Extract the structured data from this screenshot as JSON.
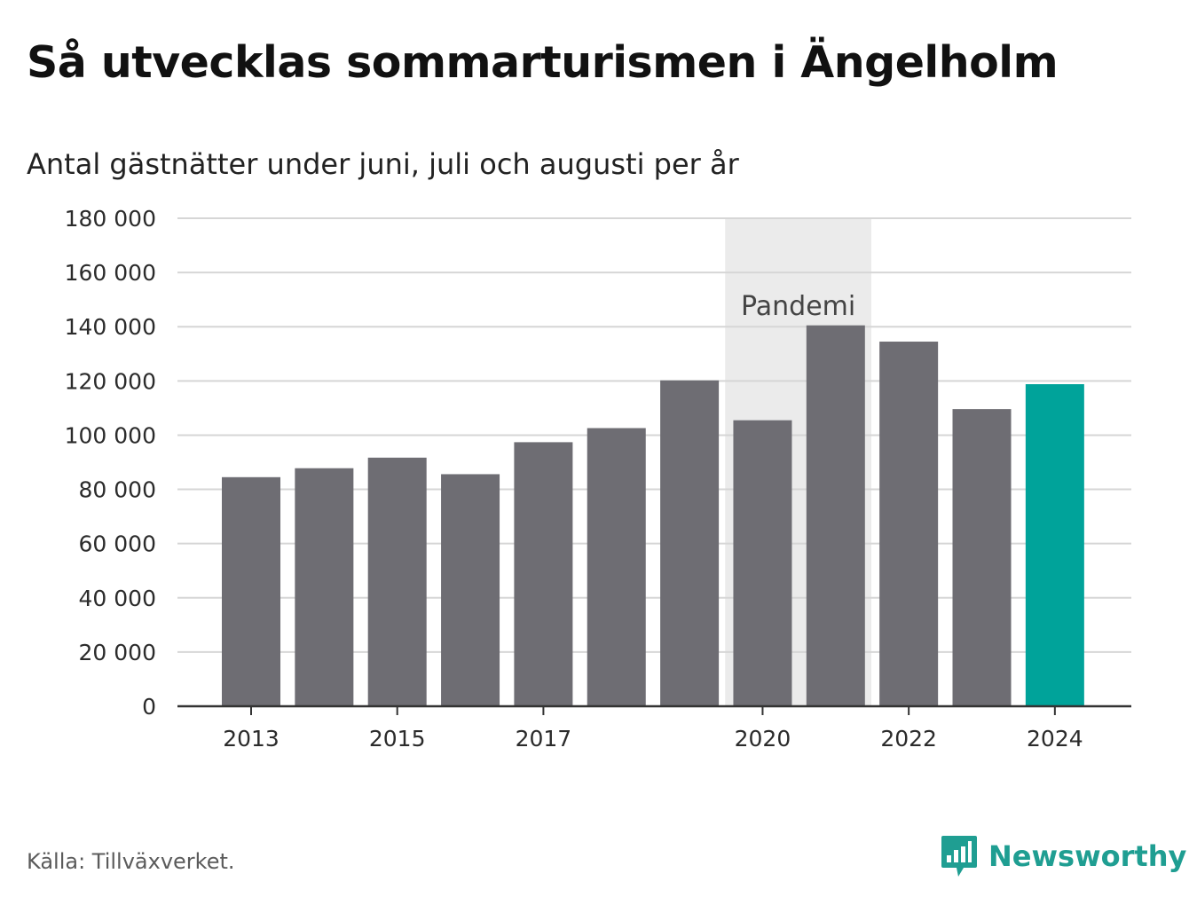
{
  "header": {
    "title": "Så utvecklas sommarturismen i Ängelholm",
    "subtitle": "Antal gästnätter under juni, juli och augusti per år"
  },
  "footer": {
    "source": "Källa: Tillväxverket.",
    "brand": "Newsworthy",
    "brand_icon": "bar-chart-speech-bubble-icon"
  },
  "chart_data": {
    "type": "bar",
    "categories": [
      "2013",
      "2014",
      "2015",
      "2016",
      "2017",
      "2018",
      "2019",
      "2020",
      "2021",
      "2022",
      "2023",
      "2024"
    ],
    "values": [
      84500,
      87800,
      91700,
      85600,
      97400,
      102600,
      120200,
      105500,
      140500,
      134500,
      109600,
      118800
    ],
    "x_tick_labels": [
      "2013",
      "2015",
      "2017",
      "2020",
      "2022",
      "2024"
    ],
    "y_ticks": [
      0,
      20000,
      40000,
      60000,
      80000,
      100000,
      120000,
      140000,
      160000,
      180000
    ],
    "y_tick_labels": [
      "0",
      "20 000",
      "40 000",
      "60 000",
      "80 000",
      "100 000",
      "120 000",
      "140 000",
      "160 000",
      "180 000"
    ],
    "ylim": [
      0,
      180000
    ],
    "grid": true,
    "colors": {
      "default": "#6e6d73",
      "highlight": "#00a39a",
      "shade": "#ebebeb"
    },
    "highlight_category": "2024",
    "shaded_range": [
      "2020",
      "2021"
    ],
    "annotation": {
      "text": "Pandemi",
      "category": "2020"
    }
  }
}
